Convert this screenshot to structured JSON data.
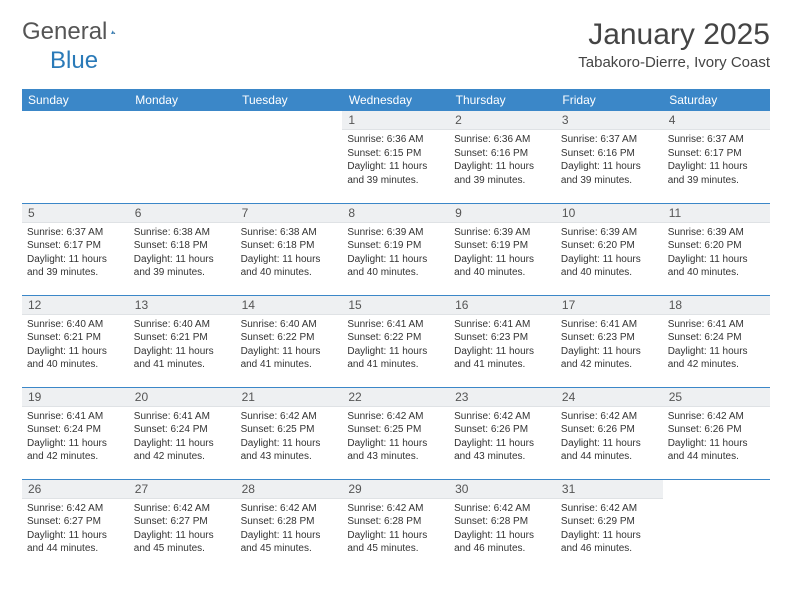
{
  "logo": {
    "text1": "General",
    "text2": "Blue"
  },
  "title": "January 2025",
  "location": "Tabakoro-Dierre, Ivory Coast",
  "colors": {
    "header_bg": "#3b87c8",
    "daynum_bg": "#eef0f2",
    "accent": "#2a7ab8"
  },
  "weekdays": [
    "Sunday",
    "Monday",
    "Tuesday",
    "Wednesday",
    "Thursday",
    "Friday",
    "Saturday"
  ],
  "weeks": [
    [
      null,
      null,
      null,
      {
        "d": "1",
        "sr": "6:36 AM",
        "ss": "6:15 PM",
        "dl": "11 hours and 39 minutes."
      },
      {
        "d": "2",
        "sr": "6:36 AM",
        "ss": "6:16 PM",
        "dl": "11 hours and 39 minutes."
      },
      {
        "d": "3",
        "sr": "6:37 AM",
        "ss": "6:16 PM",
        "dl": "11 hours and 39 minutes."
      },
      {
        "d": "4",
        "sr": "6:37 AM",
        "ss": "6:17 PM",
        "dl": "11 hours and 39 minutes."
      }
    ],
    [
      {
        "d": "5",
        "sr": "6:37 AM",
        "ss": "6:17 PM",
        "dl": "11 hours and 39 minutes."
      },
      {
        "d": "6",
        "sr": "6:38 AM",
        "ss": "6:18 PM",
        "dl": "11 hours and 39 minutes."
      },
      {
        "d": "7",
        "sr": "6:38 AM",
        "ss": "6:18 PM",
        "dl": "11 hours and 40 minutes."
      },
      {
        "d": "8",
        "sr": "6:39 AM",
        "ss": "6:19 PM",
        "dl": "11 hours and 40 minutes."
      },
      {
        "d": "9",
        "sr": "6:39 AM",
        "ss": "6:19 PM",
        "dl": "11 hours and 40 minutes."
      },
      {
        "d": "10",
        "sr": "6:39 AM",
        "ss": "6:20 PM",
        "dl": "11 hours and 40 minutes."
      },
      {
        "d": "11",
        "sr": "6:39 AM",
        "ss": "6:20 PM",
        "dl": "11 hours and 40 minutes."
      }
    ],
    [
      {
        "d": "12",
        "sr": "6:40 AM",
        "ss": "6:21 PM",
        "dl": "11 hours and 40 minutes."
      },
      {
        "d": "13",
        "sr": "6:40 AM",
        "ss": "6:21 PM",
        "dl": "11 hours and 41 minutes."
      },
      {
        "d": "14",
        "sr": "6:40 AM",
        "ss": "6:22 PM",
        "dl": "11 hours and 41 minutes."
      },
      {
        "d": "15",
        "sr": "6:41 AM",
        "ss": "6:22 PM",
        "dl": "11 hours and 41 minutes."
      },
      {
        "d": "16",
        "sr": "6:41 AM",
        "ss": "6:23 PM",
        "dl": "11 hours and 41 minutes."
      },
      {
        "d": "17",
        "sr": "6:41 AM",
        "ss": "6:23 PM",
        "dl": "11 hours and 42 minutes."
      },
      {
        "d": "18",
        "sr": "6:41 AM",
        "ss": "6:24 PM",
        "dl": "11 hours and 42 minutes."
      }
    ],
    [
      {
        "d": "19",
        "sr": "6:41 AM",
        "ss": "6:24 PM",
        "dl": "11 hours and 42 minutes."
      },
      {
        "d": "20",
        "sr": "6:41 AM",
        "ss": "6:24 PM",
        "dl": "11 hours and 42 minutes."
      },
      {
        "d": "21",
        "sr": "6:42 AM",
        "ss": "6:25 PM",
        "dl": "11 hours and 43 minutes."
      },
      {
        "d": "22",
        "sr": "6:42 AM",
        "ss": "6:25 PM",
        "dl": "11 hours and 43 minutes."
      },
      {
        "d": "23",
        "sr": "6:42 AM",
        "ss": "6:26 PM",
        "dl": "11 hours and 43 minutes."
      },
      {
        "d": "24",
        "sr": "6:42 AM",
        "ss": "6:26 PM",
        "dl": "11 hours and 44 minutes."
      },
      {
        "d": "25",
        "sr": "6:42 AM",
        "ss": "6:26 PM",
        "dl": "11 hours and 44 minutes."
      }
    ],
    [
      {
        "d": "26",
        "sr": "6:42 AM",
        "ss": "6:27 PM",
        "dl": "11 hours and 44 minutes."
      },
      {
        "d": "27",
        "sr": "6:42 AM",
        "ss": "6:27 PM",
        "dl": "11 hours and 45 minutes."
      },
      {
        "d": "28",
        "sr": "6:42 AM",
        "ss": "6:28 PM",
        "dl": "11 hours and 45 minutes."
      },
      {
        "d": "29",
        "sr": "6:42 AM",
        "ss": "6:28 PM",
        "dl": "11 hours and 45 minutes."
      },
      {
        "d": "30",
        "sr": "6:42 AM",
        "ss": "6:28 PM",
        "dl": "11 hours and 46 minutes."
      },
      {
        "d": "31",
        "sr": "6:42 AM",
        "ss": "6:29 PM",
        "dl": "11 hours and 46 minutes."
      },
      null
    ]
  ],
  "labels": {
    "sunrise": "Sunrise:",
    "sunset": "Sunset:",
    "daylight": "Daylight:"
  }
}
